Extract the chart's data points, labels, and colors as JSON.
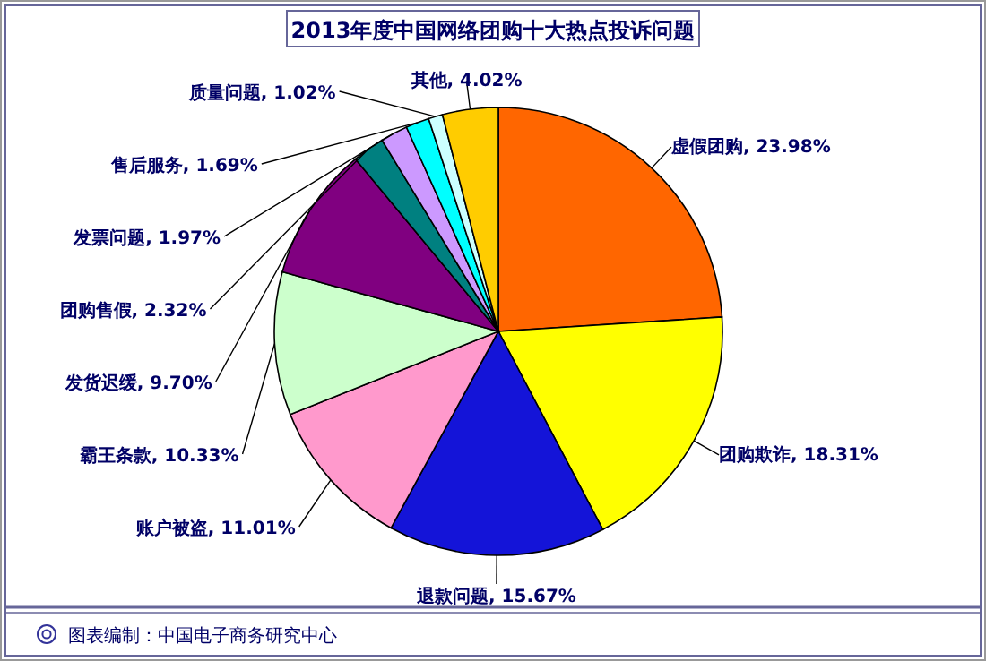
{
  "chart_data": {
    "type": "pie",
    "title": "2013年度中国网络团购十大热点投诉问题",
    "categories": [
      "虚假团购",
      "团购欺诈",
      "退款问题",
      "账户被盗",
      "霸王条款",
      "发货迟缓",
      "团购售假",
      "发票问题",
      "售后服务",
      "质量问题",
      "其他"
    ],
    "values": [
      23.98,
      18.31,
      15.67,
      11.01,
      10.33,
      9.7,
      2.32,
      1.97,
      1.69,
      1.02,
      4.02
    ],
    "value_labels": [
      "23.98%",
      "18.31%",
      "15.67%",
      "11.01%",
      "10.33%",
      "9.70%",
      "2.32%",
      "1.97%",
      "1.69%",
      "1.02%",
      "4.02%"
    ],
    "colors": [
      "#ff6600",
      "#ffff00",
      "#1414d8",
      "#ff99cc",
      "#ccffcc",
      "#800080",
      "#008080",
      "#cc99ff",
      "#00ffff",
      "#ccffff",
      "#ffcc00"
    ],
    "annotations": [
      "图表编制：中国电子商务研究中心"
    ]
  }
}
